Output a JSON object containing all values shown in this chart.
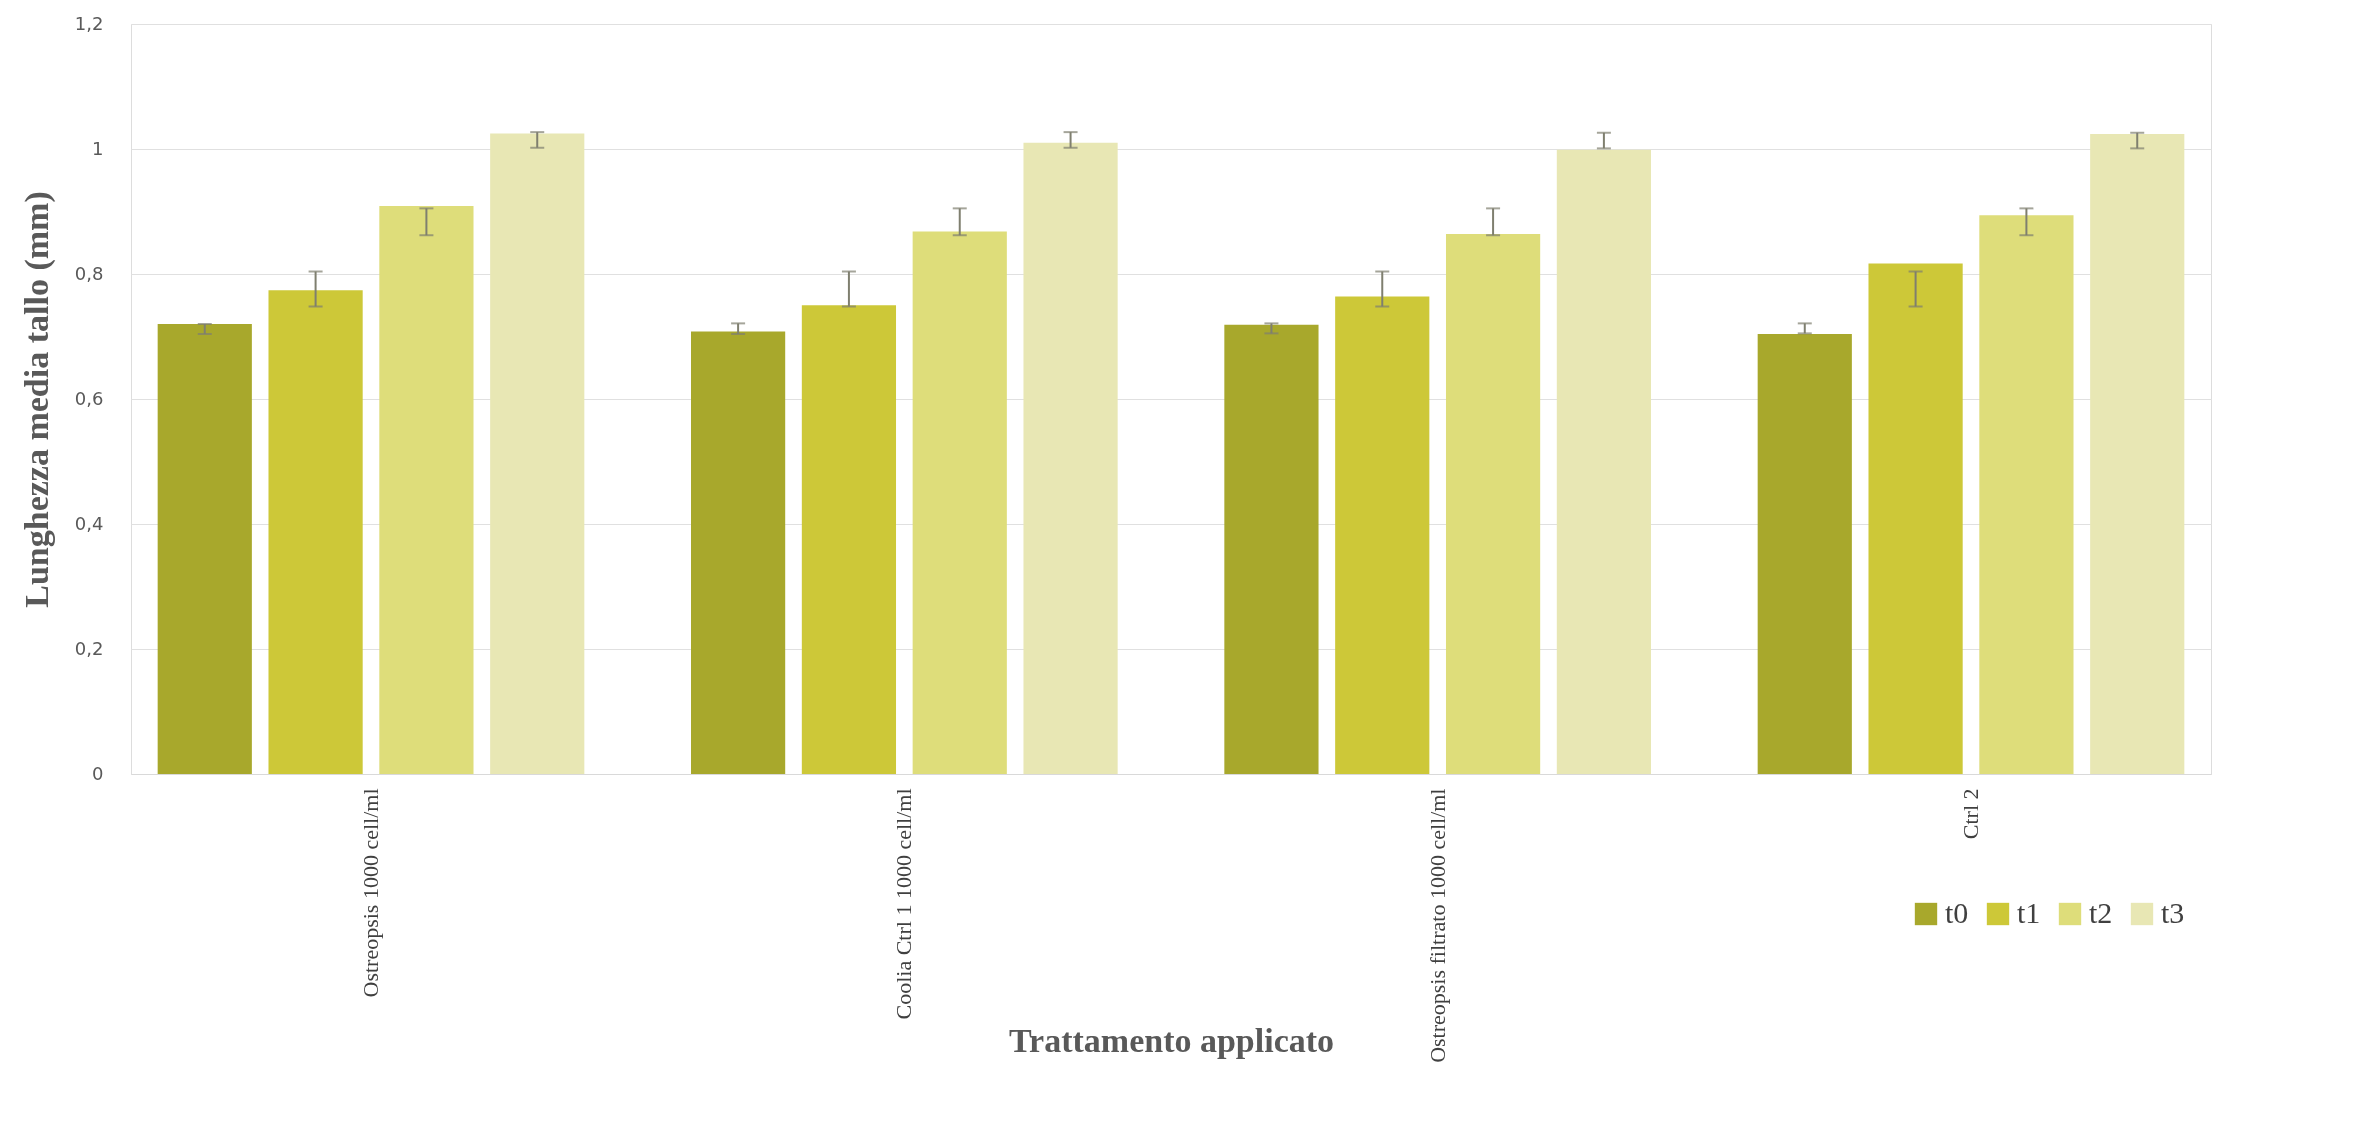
{
  "chart_data": {
    "type": "bar",
    "xlabel": "Trattamento applicato",
    "ylabel": "Lunghezza media tallo (mm)",
    "categories": [
      "Ostreopsis 1000 cell/ml",
      "Coolia Ctrl 1 1000 cell/ml",
      "Ostreopsis filtrato 1000 cell/ml",
      "Ctrl 2"
    ],
    "series": [
      {
        "name": "t0",
        "color": "#a8a82c",
        "values": [
          0.72,
          0.708,
          0.719,
          0.704
        ],
        "errors": [
          [
            0.704,
            0.72
          ],
          [
            0.704,
            0.721
          ],
          [
            0.705,
            0.721
          ],
          [
            0.705,
            0.721
          ]
        ]
      },
      {
        "name": "t1",
        "color": "#cdc838",
        "values": [
          0.774,
          0.75,
          0.764,
          0.817
        ],
        "errors": [
          [
            0.748,
            0.804
          ],
          [
            0.748,
            0.804
          ],
          [
            0.748,
            0.804
          ],
          [
            0.748,
            0.804
          ]
        ]
      },
      {
        "name": "t2",
        "color": "#dedd7a",
        "values": [
          0.909,
          0.868,
          0.864,
          0.894
        ],
        "errors": [
          [
            0.862,
            0.905
          ],
          [
            0.862,
            0.905
          ],
          [
            0.862,
            0.905
          ],
          [
            0.862,
            0.905
          ]
        ]
      },
      {
        "name": "t3",
        "color": "#e8e7b4",
        "values": [
          1.025,
          1.01,
          0.999,
          1.024
        ],
        "errors": [
          [
            1.002,
            1.027
          ],
          [
            1.002,
            1.027
          ],
          [
            1.001,
            1.026
          ],
          [
            1.001,
            1.026
          ]
        ]
      }
    ],
    "ylim": [
      0,
      1.2
    ],
    "yticks": [
      0,
      {
        "value": 0.2,
        "label": "0,2"
      },
      {
        "value": 0.4,
        "label": "0,4"
      },
      {
        "value": 0.6,
        "label": "0,6"
      },
      {
        "value": 0.8,
        "label": "0,8"
      },
      1,
      {
        "value": 1.2,
        "label": "1,2"
      }
    ],
    "grid": "y",
    "legend": "bottom right"
  }
}
